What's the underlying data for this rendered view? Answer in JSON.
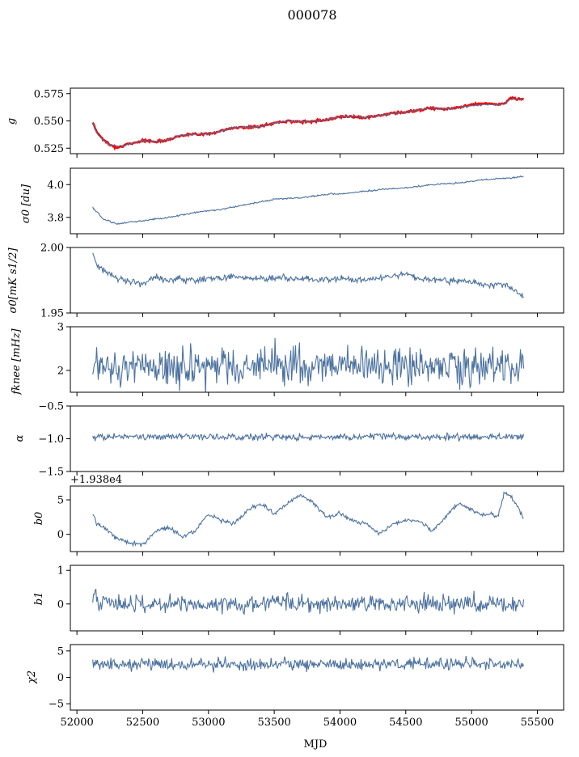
{
  "figure_title": "000078",
  "colors": {
    "series": "#4c72a0",
    "fit": "#ff0000"
  },
  "chart_data": [
    {
      "type": "line",
      "ylabel": "g",
      "xlim": [
        51950,
        55700
      ],
      "ylim": [
        0.52,
        0.58
      ],
      "yticks": [
        0.525,
        0.55,
        0.575
      ],
      "yticklabels": [
        "0.525",
        "0.550",
        "0.575"
      ],
      "offset_label": "",
      "series": [
        {
          "x": [
            52120,
            52150,
            52200,
            52250,
            52300,
            52350,
            52400,
            52500,
            52600,
            52700,
            52800,
            52900,
            53000,
            53100,
            53200,
            53300,
            53400,
            53500,
            53600,
            53700,
            53800,
            53900,
            54000,
            54100,
            54200,
            54300,
            54400,
            54500,
            54600,
            54700,
            54800,
            54900,
            55000,
            55100,
            55200,
            55250,
            55300,
            55350,
            55400
          ],
          "y": [
            0.549,
            0.54,
            0.533,
            0.528,
            0.526,
            0.527,
            0.529,
            0.532,
            0.531,
            0.533,
            0.537,
            0.538,
            0.538,
            0.541,
            0.544,
            0.544,
            0.545,
            0.548,
            0.55,
            0.549,
            0.55,
            0.551,
            0.554,
            0.554,
            0.553,
            0.555,
            0.557,
            0.558,
            0.56,
            0.562,
            0.561,
            0.562,
            0.565,
            0.566,
            0.565,
            0.566,
            0.571,
            0.57,
            0.57
          ]
        },
        {
          "x": [
            52120,
            52150,
            52200,
            52250,
            52300,
            52350,
            52400,
            52500,
            52600,
            52700,
            52800,
            52900,
            53000,
            53100,
            53200,
            53300,
            53400,
            53500,
            53600,
            53700,
            53800,
            53900,
            54000,
            54100,
            54200,
            54300,
            54400,
            54500,
            54600,
            54700,
            54800,
            54900,
            55000,
            55100,
            55200,
            55250,
            55300,
            55350,
            55400
          ],
          "y": [
            0.548,
            0.539,
            0.532,
            0.528,
            0.527,
            0.527,
            0.529,
            0.532,
            0.531,
            0.533,
            0.537,
            0.538,
            0.538,
            0.541,
            0.544,
            0.544,
            0.545,
            0.548,
            0.55,
            0.549,
            0.55,
            0.551,
            0.554,
            0.554,
            0.553,
            0.555,
            0.557,
            0.558,
            0.56,
            0.562,
            0.561,
            0.562,
            0.564,
            0.565,
            0.565,
            0.566,
            0.57,
            0.57,
            0.569
          ]
        }
      ]
    },
    {
      "type": "line",
      "ylabel": "σ0 [du]",
      "xlim": [
        51950,
        55700
      ],
      "ylim": [
        3.7,
        4.1
      ],
      "yticks": [
        3.8,
        4.0
      ],
      "yticklabels": [
        "3.8",
        "4.0"
      ],
      "offset_label": "",
      "series": [
        {
          "x": [
            52120,
            52200,
            52300,
            52400,
            52500,
            52700,
            52900,
            53100,
            53300,
            53500,
            53700,
            53900,
            54100,
            54300,
            54500,
            54700,
            54900,
            55100,
            55300,
            55400
          ],
          "y": [
            3.86,
            3.79,
            3.76,
            3.77,
            3.78,
            3.8,
            3.83,
            3.85,
            3.88,
            3.91,
            3.92,
            3.94,
            3.95,
            3.97,
            3.98,
            4.0,
            4.01,
            4.03,
            4.04,
            4.05
          ]
        }
      ]
    },
    {
      "type": "line",
      "ylabel": "σ0[mK s1/2]",
      "xlim": [
        51950,
        55700
      ],
      "ylim": [
        1.95,
        2.0
      ],
      "yticks": [
        1.95,
        2.0
      ],
      "yticklabels": [
        "1.95",
        "2.00"
      ],
      "offset_label": "",
      "series": [
        {
          "x": [
            52120,
            52150,
            52200,
            52300,
            52400,
            52500,
            52600,
            52700,
            52800,
            52900,
            53000,
            53200,
            53400,
            53600,
            53800,
            54000,
            54200,
            54400,
            54500,
            54600,
            54800,
            55000,
            55100,
            55200,
            55300,
            55350,
            55400
          ],
          "y": [
            1.994,
            1.987,
            1.983,
            1.977,
            1.974,
            1.972,
            1.977,
            1.975,
            1.976,
            1.975,
            1.976,
            1.978,
            1.976,
            1.977,
            1.975,
            1.976,
            1.975,
            1.978,
            1.98,
            1.976,
            1.975,
            1.974,
            1.971,
            1.973,
            1.97,
            1.966,
            1.962
          ]
        }
      ]
    },
    {
      "type": "line",
      "ylabel": "fknee [mHz]",
      "xlim": [
        51950,
        55700
      ],
      "ylim": [
        1.5,
        3.0
      ],
      "yticks": [
        2,
        3
      ],
      "yticklabels": [
        "2",
        "3"
      ],
      "offset_label": "",
      "series": [
        {
          "x": [
            52120,
            55400
          ],
          "y": [
            2.1,
            2.1
          ]
        }
      ]
    },
    {
      "type": "line",
      "ylabel": "α",
      "xlim": [
        51950,
        55700
      ],
      "ylim": [
        -1.5,
        -0.5
      ],
      "yticks": [
        -1.5,
        -1.0,
        -0.5
      ],
      "yticklabels": [
        "−1.5",
        "−1.0",
        "−0.5"
      ],
      "offset_label": "",
      "series": [
        {
          "x": [
            52120,
            55400
          ],
          "y": [
            -0.97,
            -0.97
          ]
        }
      ]
    },
    {
      "type": "line",
      "ylabel": "b0",
      "xlim": [
        51950,
        55700
      ],
      "ylim": [
        -2.5,
        7.0
      ],
      "yticks": [
        0,
        5
      ],
      "yticklabels": [
        "0",
        "5"
      ],
      "offset_label": "+1.938e4",
      "series": [
        {
          "x": [
            52120,
            52150,
            52200,
            52300,
            52400,
            52500,
            52600,
            52700,
            52800,
            52900,
            53000,
            53100,
            53200,
            53300,
            53400,
            53500,
            53600,
            53700,
            53800,
            53900,
            54000,
            54100,
            54200,
            54300,
            54400,
            54500,
            54600,
            54700,
            54800,
            54900,
            55000,
            55100,
            55150,
            55200,
            55250,
            55300,
            55350,
            55400
          ],
          "y": [
            3.0,
            1.5,
            1.0,
            -0.5,
            -1.3,
            -1.5,
            0.5,
            1.0,
            -0.3,
            0.5,
            3.0,
            2.0,
            1.5,
            3.5,
            4.5,
            3.0,
            4.5,
            5.8,
            4.5,
            2.5,
            3.0,
            2.0,
            1.5,
            0.0,
            1.5,
            2.0,
            2.0,
            0.5,
            2.5,
            4.5,
            3.5,
            2.7,
            3.0,
            2.5,
            6.0,
            5.5,
            4.0,
            2.0
          ]
        }
      ]
    },
    {
      "type": "line",
      "ylabel": "b1",
      "xlim": [
        51950,
        55700
      ],
      "ylim": [
        -0.8,
        1.15
      ],
      "yticks": [
        0,
        1
      ],
      "yticklabels": [
        "0",
        "1"
      ],
      "offset_label": "",
      "series": [
        {
          "x": [
            52120,
            55400
          ],
          "y": [
            0.0,
            0.0
          ]
        }
      ]
    },
    {
      "type": "line",
      "ylabel": "χ2",
      "xlim": [
        51950,
        55700
      ],
      "ylim": [
        -6.2,
        6.2
      ],
      "yticks": [
        -5,
        0,
        5
      ],
      "yticklabels": [
        "−5",
        "0",
        "5"
      ],
      "offset_label": "",
      "series": [
        {
          "x": [
            52120,
            55400
          ],
          "y": [
            2.5,
            2.5
          ]
        }
      ]
    }
  ],
  "xaxis": {
    "label": "MJD",
    "ticks": [
      52000,
      52500,
      53000,
      53500,
      54000,
      54500,
      55000,
      55500
    ],
    "ticklabels": [
      "52000",
      "52500",
      "53000",
      "53500",
      "54000",
      "54500",
      "55000",
      "55500"
    ]
  }
}
